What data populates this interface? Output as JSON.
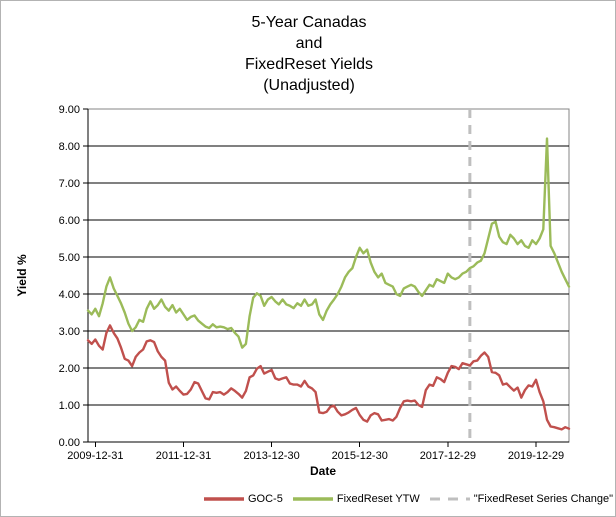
{
  "chart_data": {
    "type": "line",
    "title": "5-Year Canadas and FixedReset Yields (Unadjusted)",
    "title_lines": [
      "5-Year Canadas",
      "and",
      "FixedReset Yields",
      "(Unadjusted)"
    ],
    "xlabel": "Date",
    "ylabel": "Yield %",
    "ylim": [
      0,
      9
    ],
    "grid": true,
    "legend_position": "bottom",
    "y_ticks": [
      "0.00",
      "1.00",
      "2.00",
      "3.00",
      "4.00",
      "5.00",
      "6.00",
      "7.00",
      "8.00",
      "9.00"
    ],
    "x_tick_labels": [
      "2009-12-31",
      "2011-12-31",
      "2013-12-30",
      "2015-12-30",
      "2017-12-29",
      "2019-12-29"
    ],
    "x_tick_indices": [
      2,
      26,
      50,
      74,
      98,
      122
    ],
    "x": [
      "2009-10",
      "2009-11",
      "2009-12",
      "2010-01",
      "2010-02",
      "2010-03",
      "2010-04",
      "2010-05",
      "2010-06",
      "2010-07",
      "2010-08",
      "2010-09",
      "2010-10",
      "2010-11",
      "2010-12",
      "2011-01",
      "2011-02",
      "2011-03",
      "2011-04",
      "2011-05",
      "2011-06",
      "2011-07",
      "2011-08",
      "2011-09",
      "2011-10",
      "2011-11",
      "2011-12",
      "2012-01",
      "2012-02",
      "2012-03",
      "2012-04",
      "2012-05",
      "2012-06",
      "2012-07",
      "2012-08",
      "2012-09",
      "2012-10",
      "2012-11",
      "2012-12",
      "2013-01",
      "2013-02",
      "2013-03",
      "2013-04",
      "2013-05",
      "2013-06",
      "2013-07",
      "2013-08",
      "2013-09",
      "2013-10",
      "2013-11",
      "2013-12",
      "2014-01",
      "2014-02",
      "2014-03",
      "2014-04",
      "2014-05",
      "2014-06",
      "2014-07",
      "2014-08",
      "2014-09",
      "2014-10",
      "2014-11",
      "2014-12",
      "2015-01",
      "2015-02",
      "2015-03",
      "2015-04",
      "2015-05",
      "2015-06",
      "2015-07",
      "2015-08",
      "2015-09",
      "2015-10",
      "2015-11",
      "2015-12",
      "2016-01",
      "2016-02",
      "2016-03",
      "2016-04",
      "2016-05",
      "2016-06",
      "2016-07",
      "2016-08",
      "2016-09",
      "2016-10",
      "2016-11",
      "2016-12",
      "2017-01",
      "2017-02",
      "2017-03",
      "2017-04",
      "2017-05",
      "2017-06",
      "2017-07",
      "2017-08",
      "2017-09",
      "2017-10",
      "2017-11",
      "2017-12",
      "2018-01",
      "2018-02",
      "2018-03",
      "2018-04",
      "2018-05",
      "2018-06",
      "2018-07",
      "2018-08",
      "2018-09",
      "2018-10",
      "2018-11",
      "2018-12",
      "2019-01",
      "2019-02",
      "2019-03",
      "2019-04",
      "2019-05",
      "2019-06",
      "2019-07",
      "2019-08",
      "2019-09",
      "2019-10",
      "2019-11",
      "2019-12",
      "2020-01",
      "2020-02",
      "2020-03",
      "2020-04",
      "2020-05",
      "2020-06",
      "2020-07",
      "2020-08",
      "2020-09"
    ],
    "series": [
      {
        "name": "GOC-5",
        "color": "#C0504D",
        "values": [
          2.75,
          2.65,
          2.77,
          2.6,
          2.5,
          2.95,
          3.15,
          2.95,
          2.8,
          2.55,
          2.25,
          2.2,
          2.05,
          2.3,
          2.42,
          2.5,
          2.72,
          2.75,
          2.7,
          2.45,
          2.3,
          2.2,
          1.6,
          1.42,
          1.5,
          1.38,
          1.28,
          1.3,
          1.42,
          1.62,
          1.58,
          1.38,
          1.18,
          1.15,
          1.35,
          1.33,
          1.35,
          1.28,
          1.35,
          1.45,
          1.38,
          1.3,
          1.2,
          1.38,
          1.75,
          1.8,
          1.98,
          2.05,
          1.85,
          1.9,
          1.95,
          1.72,
          1.68,
          1.72,
          1.75,
          1.58,
          1.55,
          1.55,
          1.5,
          1.65,
          1.5,
          1.45,
          1.35,
          0.8,
          0.78,
          0.82,
          0.95,
          0.98,
          0.82,
          0.72,
          0.75,
          0.8,
          0.87,
          0.92,
          0.73,
          0.6,
          0.55,
          0.72,
          0.78,
          0.75,
          0.58,
          0.6,
          0.62,
          0.58,
          0.68,
          0.92,
          1.1,
          1.12,
          1.1,
          1.12,
          1.0,
          0.95,
          1.4,
          1.55,
          1.52,
          1.75,
          1.7,
          1.62,
          1.87,
          2.05,
          2.03,
          1.97,
          2.13,
          2.1,
          2.07,
          2.18,
          2.2,
          2.33,
          2.42,
          2.3,
          1.89,
          1.87,
          1.8,
          1.55,
          1.58,
          1.48,
          1.39,
          1.47,
          1.2,
          1.4,
          1.53,
          1.5,
          1.68,
          1.35,
          1.1,
          0.6,
          0.42,
          0.4,
          0.37,
          0.34,
          0.4,
          0.36
        ]
      },
      {
        "name": "FixedReset YTW",
        "color": "#9BBB59",
        "values": [
          3.55,
          3.45,
          3.6,
          3.4,
          3.75,
          4.2,
          4.45,
          4.15,
          3.95,
          3.75,
          3.5,
          3.2,
          3.0,
          3.1,
          3.3,
          3.25,
          3.6,
          3.8,
          3.6,
          3.7,
          3.85,
          3.65,
          3.55,
          3.7,
          3.5,
          3.6,
          3.45,
          3.3,
          3.38,
          3.42,
          3.28,
          3.2,
          3.12,
          3.08,
          3.18,
          3.1,
          3.12,
          3.1,
          3.05,
          3.08,
          2.95,
          2.85,
          2.55,
          2.65,
          3.4,
          3.9,
          4.02,
          3.95,
          3.68,
          3.85,
          3.92,
          3.8,
          3.72,
          3.85,
          3.72,
          3.68,
          3.62,
          3.75,
          3.68,
          3.85,
          3.68,
          3.72,
          3.85,
          3.45,
          3.3,
          3.55,
          3.72,
          3.85,
          4.0,
          4.2,
          4.45,
          4.6,
          4.7,
          5.0,
          5.25,
          5.1,
          5.2,
          4.85,
          4.6,
          4.45,
          4.55,
          4.3,
          4.25,
          4.2,
          4.0,
          3.95,
          4.15,
          4.2,
          4.25,
          4.2,
          4.05,
          3.95,
          4.1,
          4.25,
          4.2,
          4.4,
          4.35,
          4.3,
          4.55,
          4.45,
          4.4,
          4.45,
          4.55,
          4.6,
          4.7,
          4.75,
          4.85,
          4.9,
          5.1,
          5.5,
          5.9,
          5.95,
          5.55,
          5.4,
          5.35,
          5.6,
          5.5,
          5.35,
          5.45,
          5.3,
          5.25,
          5.45,
          5.35,
          5.5,
          5.75,
          8.2,
          5.3,
          5.1,
          4.85,
          4.6,
          4.4,
          4.2
        ]
      }
    ],
    "vline": {
      "label": "\"FixedReset Series Change\"",
      "x_index": 104,
      "color": "#BFBFBF",
      "style": "dashed"
    },
    "colors": {
      "goc5": "#C0504D",
      "fixedreset_ytw": "#9BBB59",
      "series_change": "#BFBFBF",
      "gridline": "#000000",
      "plot_border": "#848484",
      "axis": "#000000",
      "background": "#FFFFFF",
      "text": "#000000"
    }
  }
}
